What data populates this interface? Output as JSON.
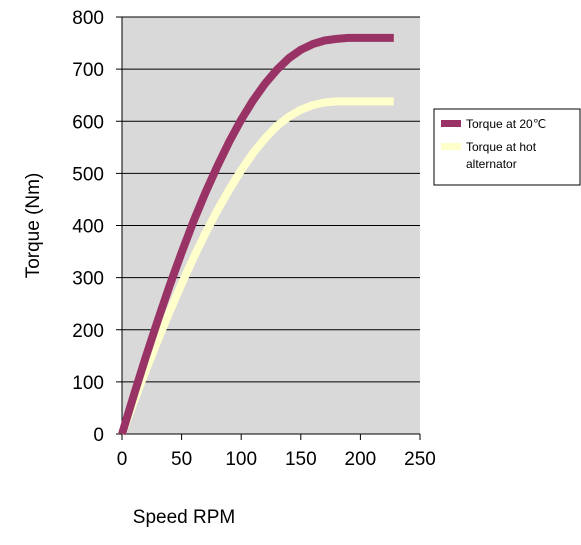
{
  "chart_data": {
    "type": "line",
    "title": "",
    "xlabel": "Speed RPM",
    "ylabel": "Torque (Nm)",
    "xlim": [
      0,
      250
    ],
    "ylim": [
      0,
      800
    ],
    "xticks": [
      0,
      50,
      100,
      150,
      200,
      250
    ],
    "yticks": [
      0,
      100,
      200,
      300,
      400,
      500,
      600,
      700,
      800
    ],
    "grid": "horizontal",
    "plot_background": "#d9d9d9",
    "legend_placement": "right",
    "series": [
      {
        "name": "Torque at 20℃",
        "color": "#993366",
        "x": [
          0,
          10,
          20,
          30,
          40,
          50,
          60,
          70,
          80,
          90,
          100,
          110,
          120,
          130,
          140,
          150,
          160,
          170,
          180,
          190,
          200,
          210,
          220,
          228
        ],
        "y": [
          0,
          75,
          148,
          218,
          285,
          348,
          408,
          463,
          514,
          561,
          603,
          640,
          672,
          699,
          721,
          737,
          748,
          755,
          758,
          760,
          760,
          760,
          760,
          760
        ]
      },
      {
        "name": "Torque at hot alternator",
        "color": "#ffffcc",
        "x": [
          0,
          10,
          20,
          30,
          40,
          50,
          60,
          70,
          80,
          90,
          100,
          110,
          120,
          130,
          140,
          150,
          160,
          170,
          180,
          190,
          200,
          210,
          220,
          228
        ],
        "y": [
          0,
          62,
          122,
          180,
          235,
          288,
          338,
          385,
          429,
          469,
          506,
          539,
          567,
          591,
          609,
          622,
          631,
          636,
          638,
          638,
          638,
          638,
          638,
          638
        ]
      }
    ]
  }
}
